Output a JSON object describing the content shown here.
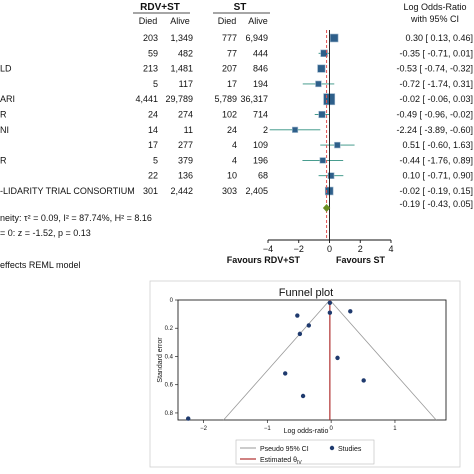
{
  "chart_data": [
    {
      "type": "forest",
      "headers": {
        "rdv_group": "RDV+ST",
        "st_group": "ST",
        "died": "Died",
        "alive": "Alive",
        "effect": "Log Odds-Ratio",
        "ci": "with 95% CI"
      },
      "studies": [
        {
          "name": "",
          "rdv_died": "203",
          "rdv_alive": "1,349",
          "st_died": "777",
          "st_alive": "6,949",
          "ci_text": "0.30 [ 0.13, 0.46]",
          "est": 0.3,
          "lo": 0.13,
          "hi": 0.46
        },
        {
          "name": "",
          "rdv_died": "59",
          "rdv_alive": "482",
          "st_died": "77",
          "st_alive": "444",
          "ci_text": "-0.35 [ -0.71, 0.01]",
          "est": -0.35,
          "lo": -0.71,
          "hi": 0.01
        },
        {
          "name": "LD",
          "rdv_died": "213",
          "rdv_alive": "1,481",
          "st_died": "207",
          "st_alive": "846",
          "ci_text": "-0.53 [ -0.74, -0.32]",
          "est": -0.53,
          "lo": -0.74,
          "hi": -0.32
        },
        {
          "name": "",
          "rdv_died": "5",
          "rdv_alive": "117",
          "st_died": "17",
          "st_alive": "194",
          "ci_text": "-0.72 [ -1.74, 0.31]",
          "est": -0.72,
          "lo": -1.74,
          "hi": 0.31
        },
        {
          "name": "ARI",
          "rdv_died": "4,441",
          "rdv_alive": "29,789",
          "st_died": "5,789",
          "st_alive": "36,317",
          "ci_text": "-0.02 [ -0.06, 0.03]",
          "est": -0.02,
          "lo": -0.06,
          "hi": 0.03
        },
        {
          "name": "R",
          "rdv_died": "24",
          "rdv_alive": "274",
          "st_died": "102",
          "st_alive": "714",
          "ci_text": "-0.49 [ -0.96, -0.02]",
          "est": -0.49,
          "lo": -0.96,
          "hi": -0.02
        },
        {
          "name": "NI",
          "rdv_died": "14",
          "rdv_alive": "11",
          "st_died": "24",
          "st_alive": "2",
          "ci_text": "-2.24 [ -3.89, -0.60]",
          "est": -2.24,
          "lo": -3.89,
          "hi": -0.6
        },
        {
          "name": "",
          "rdv_died": "17",
          "rdv_alive": "277",
          "st_died": "4",
          "st_alive": "109",
          "ci_text": "0.51 [ -0.60, 1.63]",
          "est": 0.51,
          "lo": -0.6,
          "hi": 1.63
        },
        {
          "name": "R",
          "rdv_died": "5",
          "rdv_alive": "379",
          "st_died": "4",
          "st_alive": "196",
          "ci_text": "-0.44 [ -1.76, 0.89]",
          "est": -0.44,
          "lo": -1.76,
          "hi": 0.89
        },
        {
          "name": "",
          "rdv_died": "22",
          "rdv_alive": "136",
          "st_died": "10",
          "st_alive": "68",
          "ci_text": "0.10 [ -0.71, 0.90]",
          "est": 0.1,
          "lo": -0.71,
          "hi": 0.9
        },
        {
          "name": "-LIDARITY TRIAL CONSORTIUM",
          "rdv_died": "301",
          "rdv_alive": "2,442",
          "st_died": "303",
          "st_alive": "2,405",
          "ci_text": "-0.02 [ -0.19, 0.15]",
          "est": -0.02,
          "lo": -0.19,
          "hi": 0.15
        }
      ],
      "overall": {
        "ci_text": "-0.19 [ -0.43, 0.05]",
        "est": -0.19,
        "lo": -0.43,
        "hi": 0.05
      },
      "heterogeneity": "neity: τ² = 0.09, I² = 87.74%, H² = 8.16",
      "test": "= 0: z = -1.52, p = 0.13",
      "model": "effects REML model",
      "x_ticks": [
        -4,
        -2,
        0,
        2,
        4
      ],
      "xlim": [
        -4,
        4
      ],
      "favours_left": "Favours RDV+ST",
      "favours_right": "Favours ST",
      "colors": {
        "marker": "#2e5f8a",
        "overall": "#6b8e23",
        "ref_line": "#e05050",
        "ci_line": "#2f8f7f"
      }
    },
    {
      "type": "scatter",
      "title": "Funnel plot",
      "xlabel": "Log odds-ratio",
      "ylabel": "Standard error",
      "xlim": [
        -2.4,
        1.8
      ],
      "ylim": [
        0,
        0.85
      ],
      "y_reversed": true,
      "x_ticks": [
        -2,
        -1,
        0,
        1
      ],
      "y_ticks": [
        0,
        0.2,
        0.4,
        0.6,
        0.8
      ],
      "points": [
        {
          "x": 0.3,
          "y": 0.08
        },
        {
          "x": -0.35,
          "y": 0.18
        },
        {
          "x": -0.53,
          "y": 0.11
        },
        {
          "x": -0.72,
          "y": 0.52
        },
        {
          "x": -0.02,
          "y": 0.02
        },
        {
          "x": -0.49,
          "y": 0.24
        },
        {
          "x": -2.24,
          "y": 0.84
        },
        {
          "x": 0.51,
          "y": 0.57
        },
        {
          "x": -0.44,
          "y": 0.68
        },
        {
          "x": 0.1,
          "y": 0.41
        },
        {
          "x": -0.02,
          "y": 0.09
        }
      ],
      "estimated_theta": -0.02,
      "legend": {
        "ci": "Pseudo 95% CI",
        "studies": "Studies",
        "estimated": "Estimated θ",
        "estimated_sub": "IV"
      },
      "colors": {
        "points": "#1f3a6e",
        "ci": "#9a9a9a",
        "estimated": "#b03030"
      }
    }
  ]
}
